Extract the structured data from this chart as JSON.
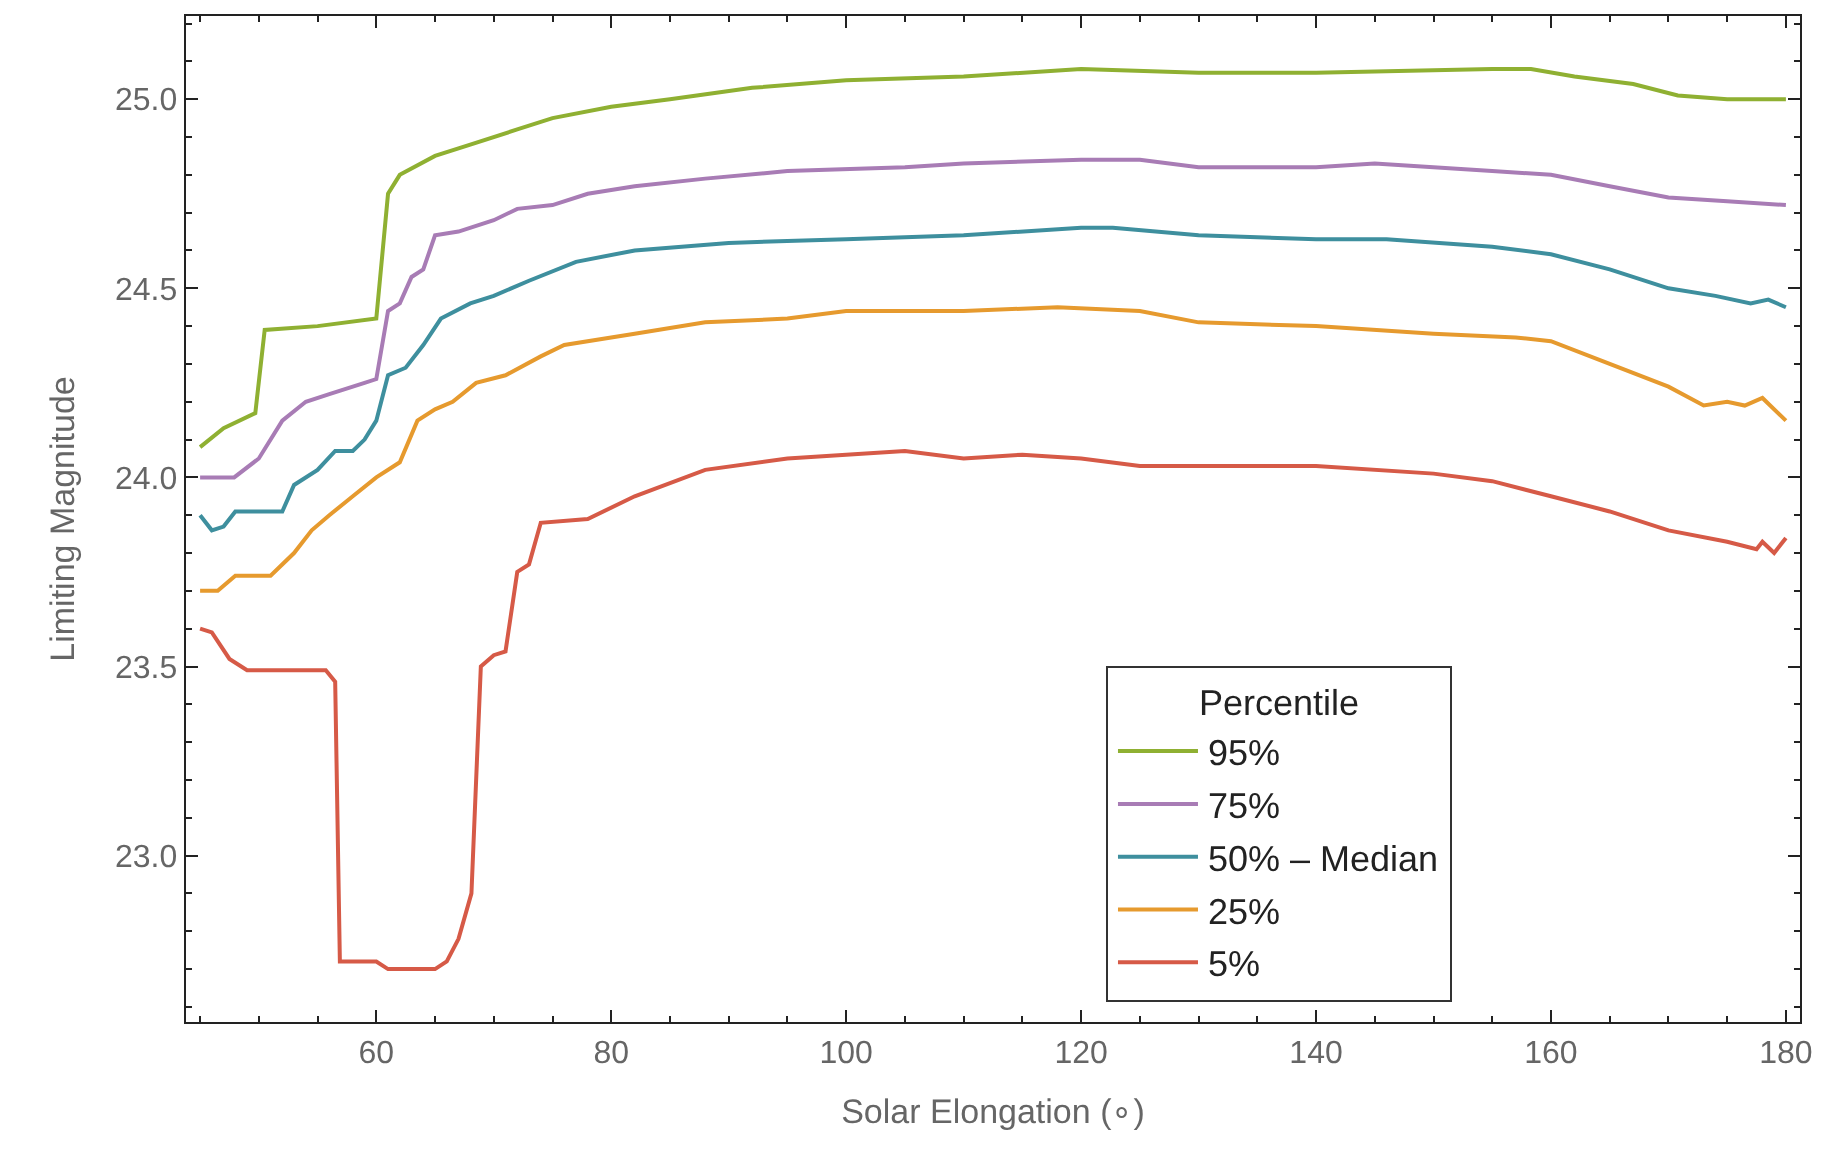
{
  "chart_data": {
    "type": "line",
    "xlabel": "Solar Elongation (∘)",
    "ylabel": "Limiting Magnitude",
    "legend_title": "Percentile",
    "xlim": [
      43.8,
      181.2
    ],
    "ylim": [
      22.56,
      25.22
    ],
    "xticks": [
      60,
      80,
      100,
      120,
      140,
      160,
      180
    ],
    "yticks": [
      {
        "value": 23,
        "label": "23.0"
      },
      {
        "value": 23.5,
        "label": "23.5"
      },
      {
        "value": 24,
        "label": "24.0"
      },
      {
        "value": 24.5,
        "label": "24.5"
      },
      {
        "value": 25,
        "label": "25.0"
      }
    ],
    "legend": "bottom right",
    "marker": "none",
    "line_style": "solid",
    "series": [
      {
        "name": "95%",
        "color": "#8fb032",
        "x": [
          45,
          47,
          49.7,
          50.5,
          55,
          60,
          61,
          62,
          65,
          68,
          72,
          75,
          80,
          85,
          92,
          100,
          110,
          120,
          130,
          140,
          155,
          158.3,
          162,
          167,
          170.8,
          175,
          180
        ],
        "values": [
          24.08,
          24.13,
          24.17,
          24.39,
          24.4,
          24.42,
          24.75,
          24.8,
          24.85,
          24.88,
          24.92,
          24.95,
          24.98,
          25.0,
          25.03,
          25.05,
          25.06,
          25.08,
          25.07,
          25.07,
          25.08,
          25.08,
          25.06,
          25.04,
          25.01,
          25.0,
          25.0
        ]
      },
      {
        "name": "75%",
        "color": "#a87cb5",
        "x": [
          45,
          47.9,
          50,
          52,
          54,
          56,
          57,
          59,
          60,
          61,
          62,
          63,
          64,
          65,
          67,
          70,
          72,
          75,
          78,
          82,
          88,
          95,
          105,
          110,
          120,
          125,
          130,
          140,
          145,
          155,
          160,
          165,
          170,
          175,
          180
        ],
        "values": [
          24.0,
          24.0,
          24.05,
          24.15,
          24.2,
          24.22,
          24.23,
          24.25,
          24.26,
          24.44,
          24.46,
          24.53,
          24.55,
          24.64,
          24.65,
          24.68,
          24.71,
          24.72,
          24.75,
          24.77,
          24.79,
          24.81,
          24.82,
          24.83,
          24.84,
          24.84,
          24.82,
          24.82,
          24.83,
          24.81,
          24.8,
          24.77,
          24.74,
          24.73,
          24.72
        ]
      },
      {
        "name": "50% – Median",
        "color": "#3e8f9e",
        "x": [
          45,
          46,
          47,
          48,
          52,
          53,
          55,
          56.5,
          58,
          59,
          60,
          61,
          62.5,
          64,
          65.5,
          68,
          70,
          73,
          77,
          82,
          90,
          100,
          110,
          120,
          122.7,
          130,
          140,
          146,
          155,
          160,
          165,
          170,
          174,
          177,
          178.5,
          180
        ],
        "values": [
          23.9,
          23.86,
          23.87,
          23.91,
          23.91,
          23.98,
          24.02,
          24.07,
          24.07,
          24.1,
          24.15,
          24.27,
          24.29,
          24.35,
          24.42,
          24.46,
          24.48,
          24.52,
          24.57,
          24.6,
          24.62,
          24.63,
          24.64,
          24.66,
          24.66,
          24.64,
          24.63,
          24.63,
          24.61,
          24.59,
          24.55,
          24.5,
          24.48,
          24.46,
          24.47,
          24.45
        ]
      },
      {
        "name": "25%",
        "color": "#e69a2e",
        "x": [
          45,
          46.5,
          48,
          51,
          53,
          54.5,
          56,
          58,
          60,
          62,
          63.5,
          65,
          66.5,
          68.5,
          71,
          74,
          76,
          82,
          88,
          95,
          100,
          110,
          118,
          125,
          130,
          140,
          150,
          157,
          160,
          165,
          170,
          173,
          175,
          176.5,
          178,
          180
        ],
        "values": [
          23.7,
          23.7,
          23.74,
          23.74,
          23.8,
          23.86,
          23.9,
          23.95,
          24.0,
          24.04,
          24.15,
          24.18,
          24.2,
          24.25,
          24.27,
          24.32,
          24.35,
          24.38,
          24.41,
          24.42,
          24.44,
          24.44,
          24.45,
          24.44,
          24.41,
          24.4,
          24.38,
          24.37,
          24.36,
          24.3,
          24.24,
          24.19,
          24.2,
          24.19,
          24.21,
          24.15
        ]
      },
      {
        "name": "5%",
        "color": "#d65a47",
        "x": [
          45,
          46,
          47.5,
          49,
          55.7,
          56.5,
          56.9,
          60,
          61,
          65,
          66,
          67,
          68.1,
          68.9,
          70,
          71,
          72,
          73,
          74,
          78,
          82,
          88,
          95,
          100,
          105,
          110,
          115,
          120,
          125,
          135,
          140,
          150,
          155,
          160,
          165,
          170,
          175,
          177.5,
          178,
          179,
          180
        ],
        "values": [
          23.6,
          23.59,
          23.52,
          23.49,
          23.49,
          23.46,
          22.72,
          22.72,
          22.7,
          22.7,
          22.72,
          22.78,
          22.9,
          23.5,
          23.53,
          23.54,
          23.75,
          23.77,
          23.88,
          23.89,
          23.95,
          24.02,
          24.05,
          24.06,
          24.07,
          24.05,
          24.06,
          24.05,
          24.03,
          24.03,
          24.03,
          24.01,
          23.99,
          23.95,
          23.91,
          23.86,
          23.83,
          23.81,
          23.83,
          23.8,
          23.84
        ]
      }
    ]
  }
}
